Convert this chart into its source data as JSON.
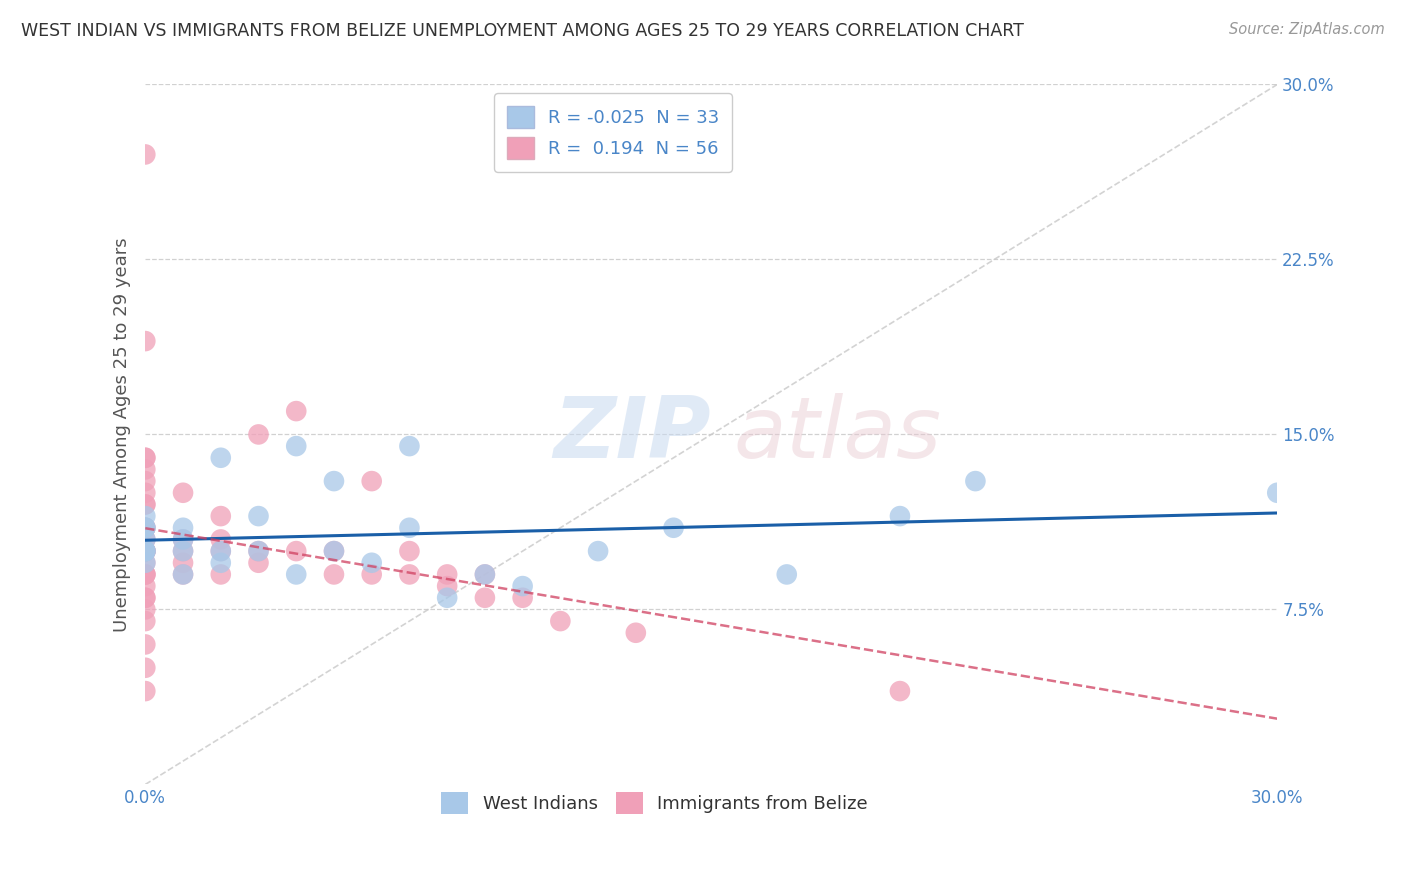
{
  "title": "WEST INDIAN VS IMMIGRANTS FROM BELIZE UNEMPLOYMENT AMONG AGES 25 TO 29 YEARS CORRELATION CHART",
  "source": "Source: ZipAtlas.com",
  "ylabel": "Unemployment Among Ages 25 to 29 years",
  "xlim": [
    0.0,
    0.3
  ],
  "ylim": [
    0.0,
    0.3
  ],
  "ytick_labels": [
    "7.5%",
    "15.0%",
    "22.5%",
    "30.0%"
  ],
  "ytick_vals": [
    0.075,
    0.15,
    0.225,
    0.3
  ],
  "xtick_vals": [
    0.0,
    0.05,
    0.1,
    0.15,
    0.2,
    0.25,
    0.3
  ],
  "xtick_labels": [
    "0.0%",
    "",
    "",
    "",
    "",
    "",
    "30.0%"
  ],
  "legend_r_west": "-0.025",
  "legend_n_west": "33",
  "legend_r_belize": "0.194",
  "legend_n_belize": "56",
  "west_indian_color": "#a8c8e8",
  "belize_color": "#f0a0b8",
  "west_indian_line_color": "#1a5fa8",
  "belize_line_color": "#d04060",
  "background_color": "#ffffff",
  "grid_color": "#cccccc",
  "west_indians_x": [
    0.0,
    0.0,
    0.0,
    0.0,
    0.0,
    0.0,
    0.0,
    0.0,
    0.01,
    0.01,
    0.01,
    0.01,
    0.02,
    0.02,
    0.02,
    0.03,
    0.03,
    0.04,
    0.04,
    0.05,
    0.05,
    0.06,
    0.07,
    0.07,
    0.08,
    0.09,
    0.1,
    0.12,
    0.14,
    0.17,
    0.2,
    0.22,
    0.3
  ],
  "west_indians_y": [
    0.095,
    0.1,
    0.1,
    0.1,
    0.105,
    0.11,
    0.11,
    0.115,
    0.09,
    0.1,
    0.105,
    0.11,
    0.095,
    0.1,
    0.14,
    0.1,
    0.115,
    0.09,
    0.145,
    0.1,
    0.13,
    0.095,
    0.11,
    0.145,
    0.08,
    0.09,
    0.085,
    0.1,
    0.11,
    0.09,
    0.115,
    0.13,
    0.125
  ],
  "belize_x": [
    0.0,
    0.0,
    0.0,
    0.0,
    0.0,
    0.0,
    0.0,
    0.0,
    0.0,
    0.0,
    0.0,
    0.0,
    0.0,
    0.0,
    0.0,
    0.0,
    0.0,
    0.0,
    0.0,
    0.0,
    0.0,
    0.0,
    0.0,
    0.0,
    0.0,
    0.0,
    0.0,
    0.0,
    0.01,
    0.01,
    0.01,
    0.01,
    0.01,
    0.02,
    0.02,
    0.02,
    0.02,
    0.03,
    0.03,
    0.03,
    0.04,
    0.04,
    0.05,
    0.05,
    0.06,
    0.06,
    0.07,
    0.07,
    0.08,
    0.08,
    0.09,
    0.09,
    0.1,
    0.11,
    0.13,
    0.2
  ],
  "belize_y": [
    0.04,
    0.05,
    0.06,
    0.07,
    0.075,
    0.08,
    0.08,
    0.085,
    0.09,
    0.09,
    0.09,
    0.095,
    0.1,
    0.1,
    0.1,
    0.1,
    0.105,
    0.11,
    0.11,
    0.12,
    0.12,
    0.125,
    0.13,
    0.135,
    0.14,
    0.14,
    0.19,
    0.27,
    0.09,
    0.095,
    0.1,
    0.105,
    0.125,
    0.09,
    0.1,
    0.105,
    0.115,
    0.095,
    0.1,
    0.15,
    0.1,
    0.16,
    0.09,
    0.1,
    0.09,
    0.13,
    0.09,
    0.1,
    0.085,
    0.09,
    0.08,
    0.09,
    0.08,
    0.07,
    0.065,
    0.04
  ]
}
